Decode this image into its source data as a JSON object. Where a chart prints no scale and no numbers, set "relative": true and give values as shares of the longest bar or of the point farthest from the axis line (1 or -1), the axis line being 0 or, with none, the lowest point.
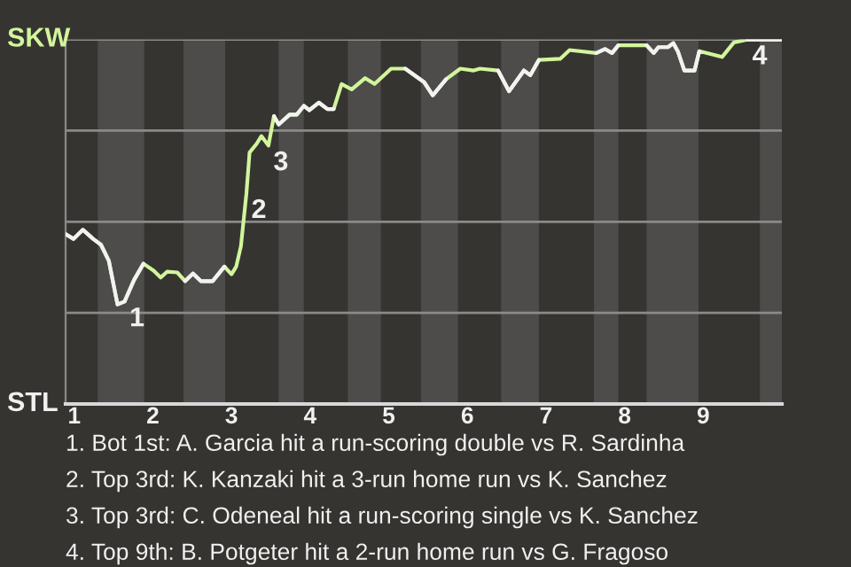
{
  "chart_data": {
    "type": "line",
    "relative": true,
    "tick_labels": "x",
    "x": [
      0.89,
      0.99,
      1.11,
      1.24,
      1.34,
      1.44,
      1.55,
      1.64,
      1.76,
      1.88,
      2.01,
      2.1,
      2.18,
      2.31,
      2.41,
      2.51,
      2.61,
      2.76,
      2.91,
      3.0,
      3.06,
      3.12,
      3.19,
      3.23,
      3.32,
      3.38,
      3.47,
      3.54,
      3.6,
      3.74,
      3.83,
      3.92,
      3.99,
      4.11,
      4.22,
      4.3,
      4.4,
      4.53,
      4.7,
      4.82,
      5.03,
      5.21,
      5.45,
      5.56,
      5.73,
      5.91,
      6.08,
      6.16,
      6.39,
      6.53,
      6.72,
      6.8,
      6.91,
      7.18,
      7.3,
      7.64,
      7.75,
      7.84,
      7.92,
      8.28,
      8.37,
      8.43,
      8.55,
      8.62,
      8.68,
      8.76,
      8.89,
      8.95,
      9.24,
      9.39,
      9.56,
      10
    ],
    "series": [
      {
        "color": "#d2f59c",
        "values": [
          0.466,
          0.453,
          0.478,
          0.453,
          0.437,
          0.393,
          0.273,
          0.281,
          0.34,
          0.385,
          0.366,
          0.347,
          0.363,
          0.361,
          0.337,
          0.358,
          0.337,
          0.337,
          0.377,
          0.356,
          0.377,
          0.433,
          0.578,
          0.69,
          0.714,
          0.735,
          0.709,
          0.79,
          0.767,
          0.794,
          0.794,
          0.818,
          0.806,
          0.827,
          0.809,
          0.809,
          0.878,
          0.863,
          0.894,
          0.878,
          0.92,
          0.92,
          0.883,
          0.847,
          0.891,
          0.92,
          0.915,
          0.92,
          0.915,
          0.858,
          0.915,
          0.902,
          0.944,
          0.947,
          0.971,
          0.963,
          0.974,
          0.963,
          0.984,
          0.984,
          0.963,
          0.979,
          0.979,
          0.99,
          0.966,
          0.915,
          0.915,
          0.968,
          0.952,
          0.992,
          1.0,
          1.0
        ],
        "colors": [
          "#f2f2f2",
          "#f2f2f2",
          "#f2f2f2",
          "#f2f2f2",
          "#f2f2f2",
          "#f2f2f2",
          "#f2f2f2",
          "#f2f2f2",
          "#f2f2f2",
          "#d2f59c",
          "#d2f59c",
          "#d2f59c",
          "#d2f59c",
          "#d2f59c",
          "#f2f2f2",
          "#f2f2f2",
          "#f2f2f2",
          "#f2f2f2",
          "#d2f59c",
          "#d2f59c",
          "#d2f59c",
          "#d2f59c",
          "#d2f59c",
          "#d2f59c",
          "#d2f59c",
          "#d2f59c",
          "#d2f59c",
          "#f2f2f2",
          "#f2f2f2",
          "#f2f2f2",
          "#f2f2f2",
          "#f2f2f2",
          "#f2f2f2",
          "#f2f2f2",
          "#f2f2f2",
          "#d2f59c",
          "#d2f59c",
          "#d2f59c",
          "#d2f59c",
          "#d2f59c",
          "#d2f59c",
          "#f2f2f2",
          "#f2f2f2",
          "#f2f2f2",
          "#d2f59c",
          "#d2f59c",
          "#d2f59c",
          "#d2f59c",
          "#f2f2f2",
          "#f2f2f2",
          "#f2f2f2",
          "#f2f2f2",
          "#d2f59c",
          "#d2f59c",
          "#d2f59c",
          "#f2f2f2",
          "#f2f2f2",
          "#f2f2f2",
          "#d2f59c",
          "#f2f2f2",
          "#f2f2f2",
          "#f2f2f2",
          "#f2f2f2",
          "#f2f2f2",
          "#f2f2f2",
          "#f2f2f2",
          "#f2f2f2",
          "#d2f59c",
          "#d2f59c",
          "#d2f59c",
          "#f2f2f2",
          "#f2f2f2"
        ]
      }
    ],
    "xlim": [
      0.89,
      10
    ],
    "xticks": [
      1,
      2,
      3,
      4,
      5,
      6,
      7,
      8,
      9
    ],
    "ref_lines": [
      {
        "axis": "y",
        "value": 1,
        "color": "#8a8a8a"
      },
      {
        "axis": "y",
        "value": 0.75,
        "color": "#8a8a8a"
      },
      {
        "axis": "y",
        "value": 0.5,
        "color": "#8a8a8a"
      },
      {
        "axis": "y",
        "value": 0.25,
        "color": "#8a8a8a"
      }
    ],
    "bands": [
      {
        "axis": "x",
        "from": 1.3,
        "to": 1.89,
        "color": "#4d4c4a"
      },
      {
        "axis": "x",
        "from": 2.39,
        "to": 2.92,
        "color": "#4d4c4a"
      },
      {
        "axis": "x",
        "from": 3.6,
        "to": 3.92,
        "color": "#4d4c4a"
      },
      {
        "axis": "x",
        "from": 4.48,
        "to": 4.9,
        "color": "#4d4c4a"
      },
      {
        "axis": "x",
        "from": 5.41,
        "to": 5.88,
        "color": "#4d4c4a"
      },
      {
        "axis": "x",
        "from": 6.43,
        "to": 6.91,
        "color": "#4d4c4a"
      },
      {
        "axis": "x",
        "from": 7.61,
        "to": 7.92,
        "color": "#4d4c4a"
      },
      {
        "axis": "x",
        "from": 8.28,
        "to": 8.94,
        "color": "#4d4c4a"
      },
      {
        "axis": "x",
        "from": 9.72,
        "to": 10,
        "color": "#4d4c4a"
      }
    ],
    "annotations": [
      "SKW",
      "STL",
      {
        "text": "1",
        "x": 1.64,
        "y": 0.281
      },
      {
        "text": "2",
        "x": 3.19,
        "y": 0.578
      },
      {
        "text": "3",
        "x": 3.47,
        "y": 0.709
      },
      {
        "text": "4",
        "x": 9.56,
        "y": 1.0
      },
      "1. Bot 1st: A. Garcia hit a run-scoring double vs R. Sardinha",
      "2. Top 3rd: K. Kanzaki hit a 3-run home run vs K. Sanchez",
      "3. Top 3rd: C. Odeneal hit a run-scoring single vs K. Sanchez",
      "4. Top 9th: B. Potgeter hit a 2-run home run vs G. Fragoso"
    ]
  }
}
